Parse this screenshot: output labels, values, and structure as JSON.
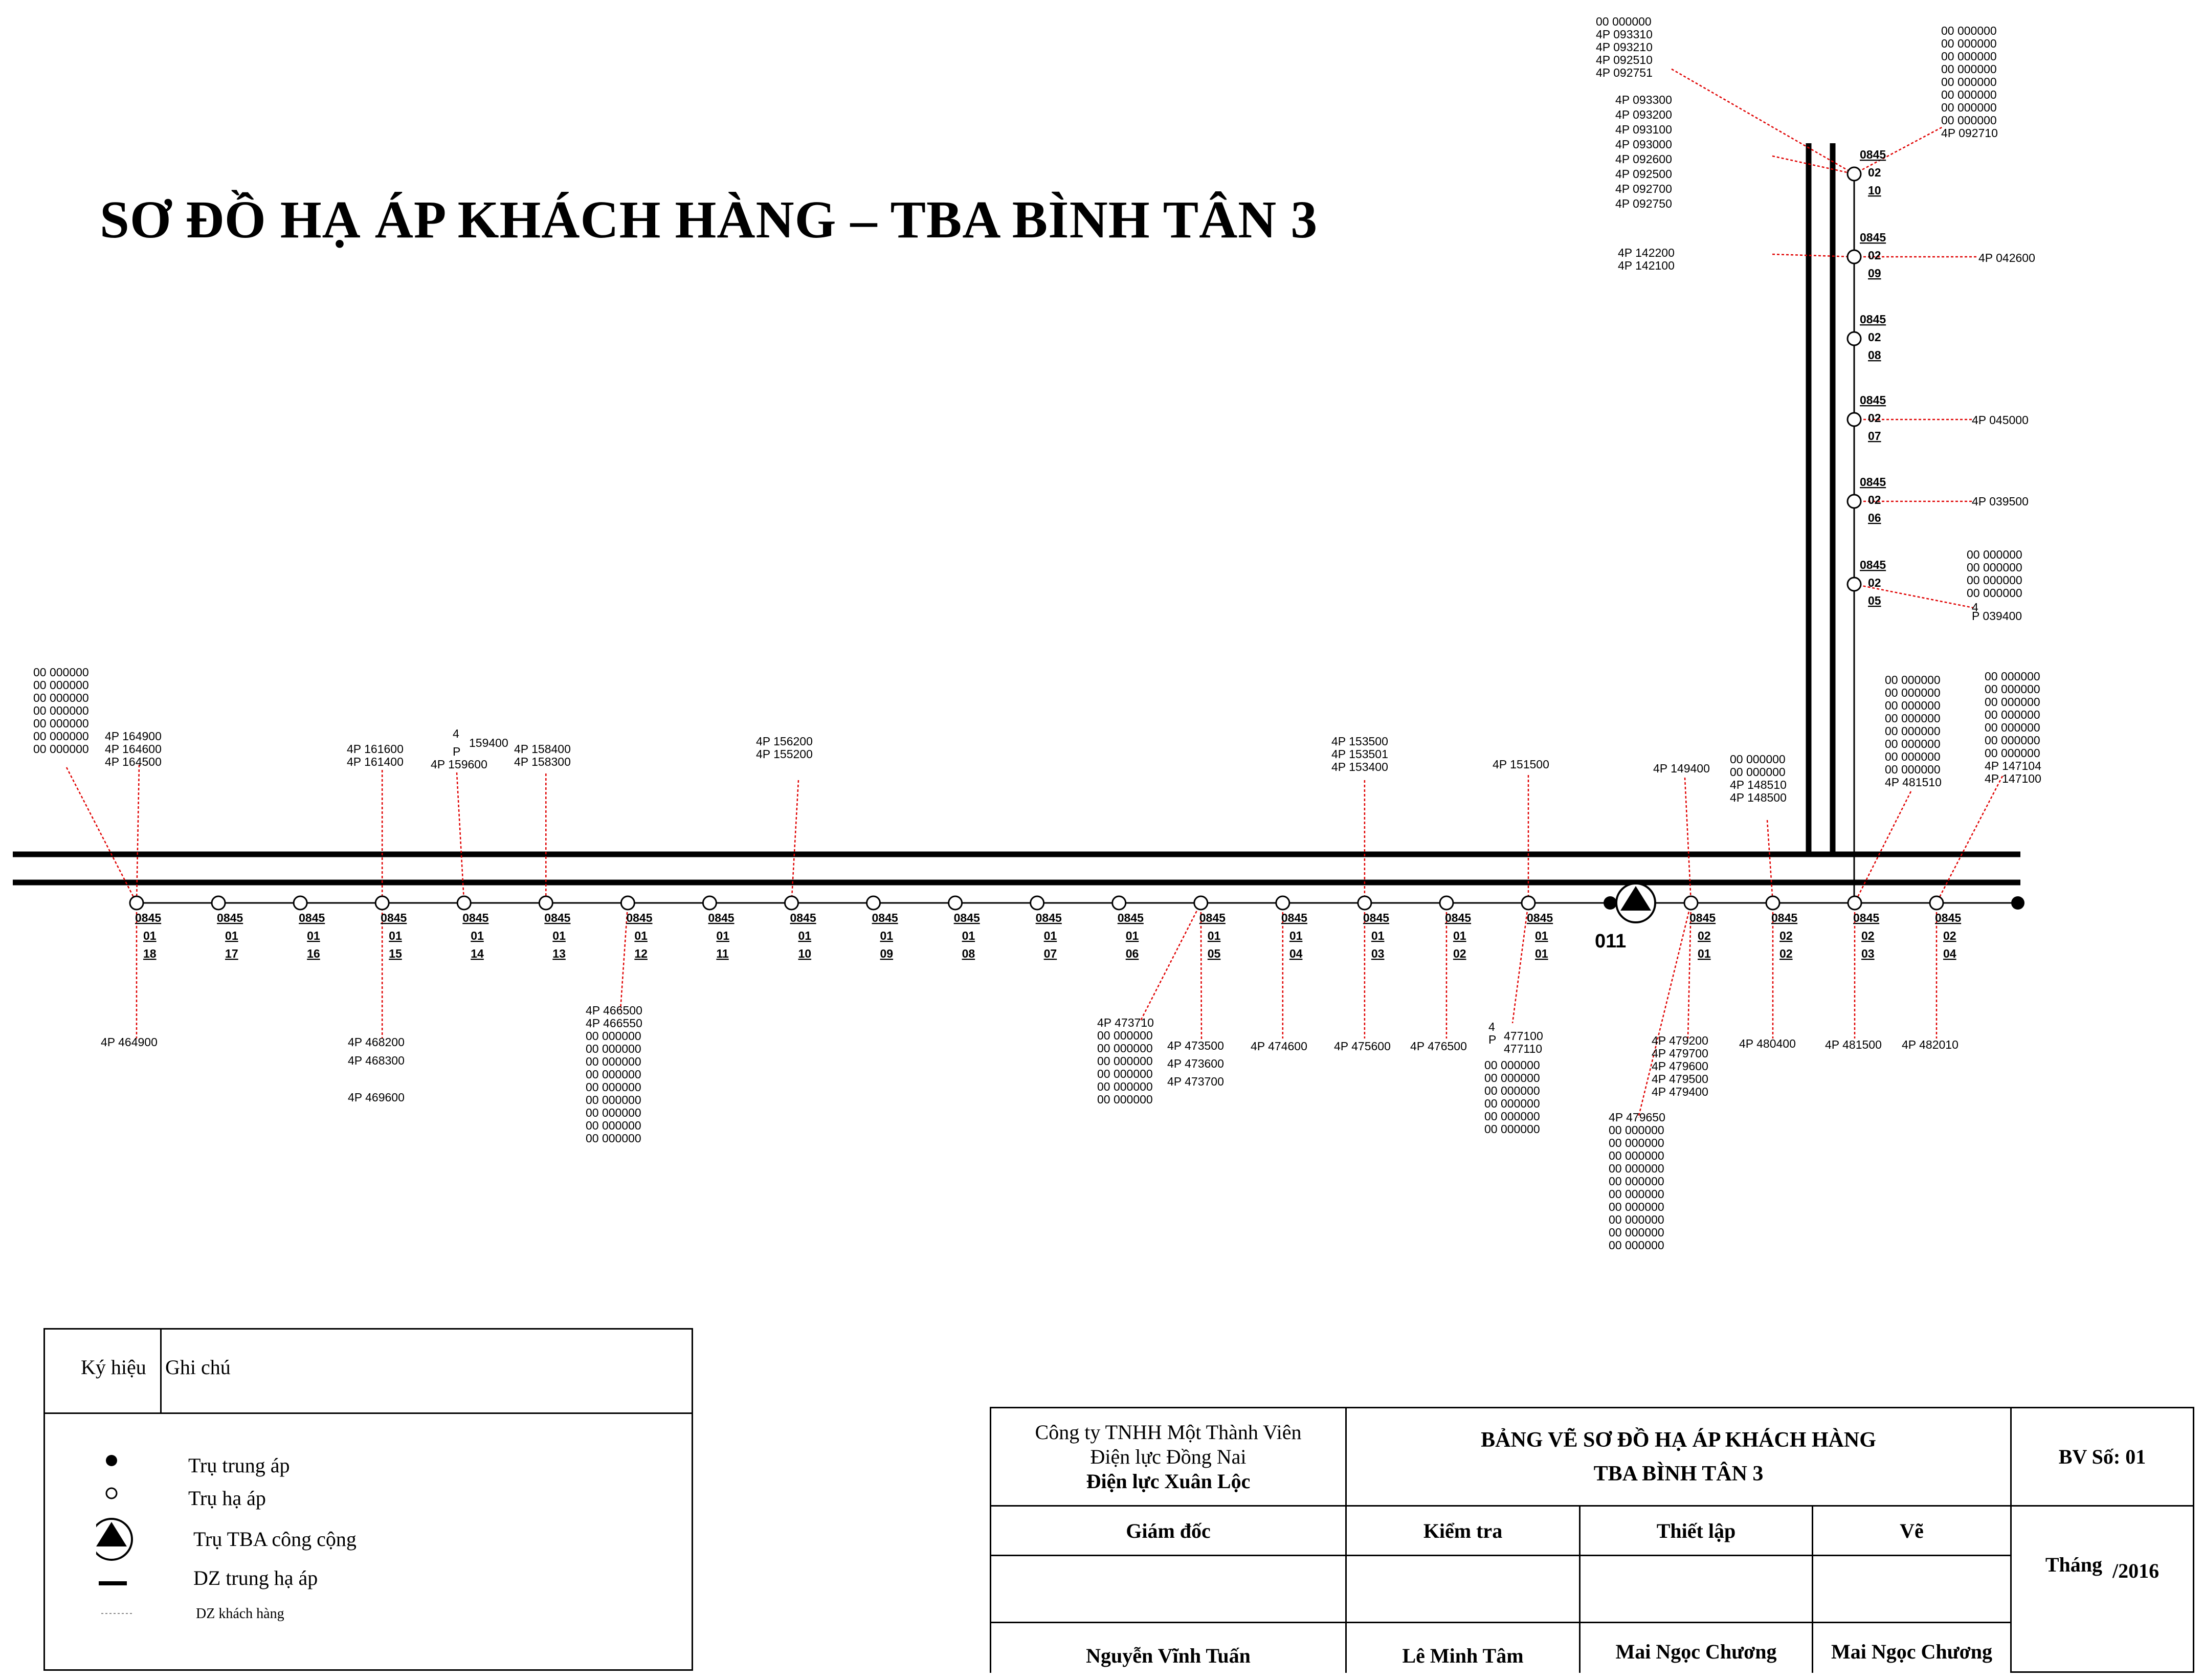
{
  "title": "SƠ ĐỒ HẠ ÁP KHÁCH HÀNG – TBA BÌNH TÂN 3",
  "substation_label": "011",
  "line1_poles": [
    {
      "label": [
        "0845",
        "01",
        "18"
      ],
      "up": [
        "00  000000",
        "00  000000",
        "00  000000",
        "00  000000",
        "00  000000",
        "00  000000",
        "00  000000"
      ],
      "up2": [
        "4P  164900",
        "4P  164600",
        "4P  164500"
      ],
      "down": [
        "4P  464900"
      ]
    },
    {
      "label": [
        "0845",
        "01",
        "17"
      ]
    },
    {
      "label": [
        "0845",
        "01",
        "16"
      ]
    },
    {
      "label": [
        "0845",
        "01",
        "15"
      ],
      "up": [
        "4P  161600",
        "4P  161400"
      ],
      "down": [
        "4P  468200",
        "4P  468300",
        "",
        "4P  469600"
      ]
    },
    {
      "label": [
        "0845",
        "01",
        "14"
      ],
      "up": [
        "4",
        "P",
        "4P  159600"
      ],
      "up2": [
        "159400"
      ]
    },
    {
      "label": [
        "0845",
        "01",
        "13"
      ],
      "up": [
        "4P  158400",
        "4P  158300"
      ]
    },
    {
      "label": [
        "0845",
        "01",
        "12"
      ],
      "down": [
        "4P  466500",
        "4P  466550",
        "00  000000",
        "00  000000",
        "00  000000",
        "00  000000",
        "00  000000",
        "00  000000",
        "00  000000",
        "00  000000",
        "00  000000"
      ]
    },
    {
      "label": [
        "0845",
        "01",
        "11"
      ]
    },
    {
      "label": [
        "0845",
        "01",
        "10"
      ],
      "up": [
        "4P  156200",
        "4P  155200"
      ]
    },
    {
      "label": [
        "0845",
        "01",
        "09"
      ]
    },
    {
      "label": [
        "0845",
        "01",
        "08"
      ]
    },
    {
      "label": [
        "0845",
        "01",
        "07"
      ]
    },
    {
      "label": [
        "0845",
        "01",
        "06"
      ]
    },
    {
      "label": [
        "0845",
        "01",
        "05"
      ],
      "down": [
        "4P  473710",
        "00  000000",
        "00  000000",
        "00  000000",
        "00  000000",
        "00  000000",
        "00  000000"
      ],
      "down2": [
        "4P  473500",
        "4P  473600",
        "4P  473700"
      ]
    },
    {
      "label": [
        "0845",
        "01",
        "04"
      ],
      "down": [
        "4P  474600"
      ]
    },
    {
      "label": [
        "0845",
        "01",
        "03"
      ],
      "up": [
        "4P  153500",
        "4P  153501",
        "4P  153400"
      ],
      "down": [
        "4P  475600"
      ]
    },
    {
      "label": [
        "0845",
        "01",
        "02"
      ],
      "down": [
        "4P  476500"
      ]
    },
    {
      "label": [
        "0845",
        "01",
        "01"
      ],
      "up": [
        "4P  151500"
      ],
      "down": [
        "4",
        "P",
        "00  000000",
        "00  000000",
        "00  000000",
        "00  000000",
        "00  000000",
        "00  000000"
      ],
      "down2": [
        "477100",
        "477110"
      ]
    }
  ],
  "line2_poles": [
    {
      "label": [
        "0845",
        "02",
        "01"
      ],
      "up": [
        "4P  149400"
      ],
      "down": [
        "4P  479200",
        "4P  479700",
        "4P  479600",
        "4P  479500",
        "4P  479400"
      ],
      "down3": [
        "4P  479650",
        "00  000000",
        "00  000000",
        "00  000000",
        "00  000000",
        "00  000000",
        "00  000000",
        "00  000000",
        "00  000000",
        "00  000000",
        "00  000000"
      ]
    },
    {
      "label": [
        "0845",
        "02",
        "02"
      ],
      "up": [
        "00  000000",
        "00  000000",
        "4P  148510",
        "4P  148500"
      ],
      "down": [
        "4P  480400"
      ]
    },
    {
      "label": [
        "0845",
        "02",
        "03"
      ],
      "up": [
        "00  000000",
        "00  000000",
        "00  000000",
        "00  000000",
        "00  000000",
        "00  000000",
        "00  000000",
        "00  000000",
        "4P  481510"
      ],
      "down": [
        "4P  481500"
      ]
    },
    {
      "label": [
        "0845",
        "02",
        "04"
      ],
      "up": [
        "00  000000",
        "00  000000",
        "00  000000",
        "00  000000",
        "00  000000",
        "00  000000",
        "00  000000",
        "4P  147104",
        "4P  147100"
      ],
      "down": [
        "4P  482010"
      ]
    }
  ],
  "branch_poles": [
    {
      "label": [
        "0845",
        "02",
        "05"
      ],
      "right": [
        "00  000000",
        "00  000000",
        "00  000000",
        "00  000000",
        "4",
        "P  039400"
      ]
    },
    {
      "label": [
        "0845",
        "02",
        "06"
      ],
      "right": [
        "4P    039500"
      ]
    },
    {
      "label": [
        "0845",
        "02",
        "07"
      ],
      "right": [
        "4P    045000"
      ]
    },
    {
      "label": [
        "0845",
        "02",
        "08"
      ]
    },
    {
      "label": [
        "0845",
        "02",
        "09"
      ],
      "left": [
        "4P    142200",
        "4P    142100"
      ],
      "right": [
        "4P    042600"
      ]
    },
    {
      "label": [
        "0845",
        "02",
        "10"
      ],
      "left_top": [
        "00    000000",
        "4P    093310",
        "4P    093210",
        "4P    092510",
        "4P    092751"
      ],
      "left": [
        "4P    093300",
        "4P    093200",
        "4P    093100",
        "4P    093000",
        "4P    092600",
        "4P    092500",
        "4P    092700",
        "4P    092750"
      ],
      "right": [
        "00  000000",
        "00  000000",
        "00  000000",
        "00  000000",
        "00  000000",
        "00  000000",
        "00  000000",
        "00  000000",
        "4P  092710"
      ]
    }
  ],
  "legend": {
    "col1": "Ký hiệu",
    "col2": "Ghi chú",
    "items": [
      "Trụ trung áp",
      "Trụ hạ áp",
      "Trụ TBA công cộng",
      "DZ trung hạ áp",
      "DZ khách hàng"
    ]
  },
  "title_block": {
    "company": [
      "Công ty TNHH Một Thành Viên",
      "Điện lực Đồng Nai",
      "Điện lực Xuân Lộc"
    ],
    "drawing_title": [
      "BẢNG VẼ SƠ ĐỒ HẠ ÁP KHÁCH HÀNG",
      "TBA BÌNH TÂN 3"
    ],
    "drawing_no": "BV Số: 01",
    "roles": [
      "Giám đốc",
      "Kiểm tra",
      "Thiết lập",
      "Vẽ"
    ],
    "names": [
      "Nguyễn Vĩnh Tuấn",
      "Lê Minh Tâm",
      "Mai Ngọc Chương",
      "Mai Ngọc Chương"
    ],
    "month_label": "Tháng",
    "year": "/2016"
  }
}
